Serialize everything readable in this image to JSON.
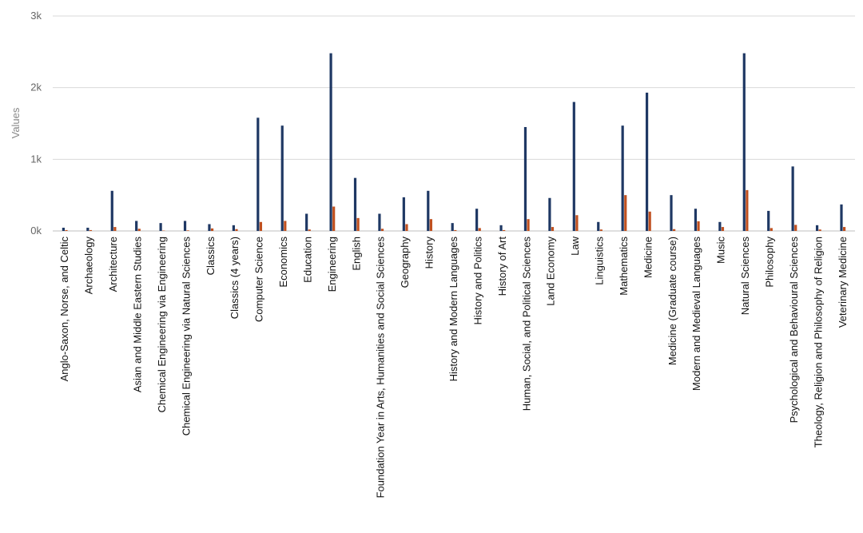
{
  "chart_data": {
    "type": "bar",
    "title": "",
    "xlabel": "",
    "ylabel": "Values",
    "ylim": [
      0,
      3000
    ],
    "yticks": [
      {
        "value": 0,
        "label": "0k"
      },
      {
        "value": 1000,
        "label": "1k"
      },
      {
        "value": 2000,
        "label": "2k"
      },
      {
        "value": 3000,
        "label": "3k"
      }
    ],
    "grid": true,
    "legend": "none",
    "colors": [
      "#1f3864",
      "#c0501f"
    ],
    "categories": [
      "Anglo-Saxon, Norse, and Celtic",
      "Archaeology",
      "Architecture",
      "Asian and Middle Eastern Studies",
      "Chemical Engineering via Engineering",
      "Chemical Engineering via Natural Sciences",
      "Classics",
      "Classics (4 years)",
      "Computer Science",
      "Economics",
      "Education",
      "Engineering",
      "English",
      "Foundation Year in Arts, Humanities and Social Sciences",
      "Geography",
      "History",
      "History and Modern Languages",
      "History and Politics",
      "History of Art",
      "Human, Social, and Political Sciences",
      "Land Economy",
      "Law",
      "Linguistics",
      "Mathematics",
      "Medicine",
      "Medicine (Graduate course)",
      "Modern and Medieval Languages",
      "Music",
      "Natural Sciences",
      "Philosophy",
      "Psychological and Behavioural Sciences",
      "Theology, Religion and Philosophy of Religion",
      "Veterinary Medicine"
    ],
    "series": [
      {
        "values": [
          45,
          45,
          560,
          140,
          110,
          140,
          95,
          80,
          1580,
          1470,
          240,
          2480,
          740,
          240,
          470,
          560,
          110,
          310,
          80,
          1450,
          460,
          1800,
          125,
          1470,
          1930,
          500,
          310,
          125,
          2480,
          280,
          900,
          80,
          370
        ]
      },
      {
        "values": [
          12,
          12,
          55,
          30,
          5,
          8,
          35,
          25,
          125,
          140,
          20,
          340,
          180,
          30,
          95,
          165,
          12,
          40,
          12,
          165,
          55,
          220,
          20,
          500,
          270,
          25,
          135,
          55,
          570,
          40,
          85,
          20,
          55
        ]
      }
    ]
  }
}
